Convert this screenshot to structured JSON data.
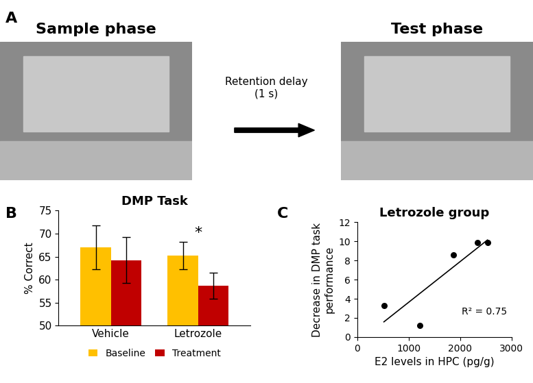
{
  "panel_labels": [
    "A",
    "B",
    "C"
  ],
  "schematic": {
    "left_title": "Sample phase",
    "arrow_label": "Retention delay\n(1 s)",
    "right_title": "Test phase"
  },
  "chart_data": [
    {
      "type": "bar",
      "title": "DMP Task",
      "y_label": "% Correct",
      "categories": [
        "Vehicle",
        "Letrozole"
      ],
      "series": [
        {
          "name": "Baseline",
          "color": "#FFC000",
          "values": [
            67.0,
            65.2
          ],
          "errors": [
            4.8,
            3.0
          ]
        },
        {
          "name": "Treatment",
          "color": "#C00000",
          "values": [
            64.2,
            58.7
          ],
          "errors": [
            5.0,
            2.8
          ]
        }
      ],
      "ylim": [
        50,
        75
      ],
      "yticks": [
        50,
        55,
        60,
        65,
        70,
        75
      ],
      "legend": "lower center",
      "annotations": [
        {
          "text": "*",
          "category": "Letrozole"
        }
      ]
    },
    {
      "type": "scatter",
      "title": "Letrozole group",
      "x_label": "E2 levels in HPC (pg/g)",
      "y_label": "Decrease in DMP task\nperformance",
      "x": [
        520,
        1220,
        1870,
        2330,
        2530
      ],
      "values": [
        3.3,
        1.2,
        8.6,
        9.9,
        9.9
      ],
      "color": "#000000",
      "marker": "circle",
      "trendline": true,
      "annotations": [
        {
          "text": "R² = 0.75"
        }
      ],
      "xlim": [
        0,
        3000
      ],
      "xticks": [
        0,
        1000,
        2000,
        3000
      ],
      "ylim": [
        0,
        12
      ],
      "yticks": [
        0,
        2,
        4,
        6,
        8,
        10,
        12
      ]
    }
  ]
}
